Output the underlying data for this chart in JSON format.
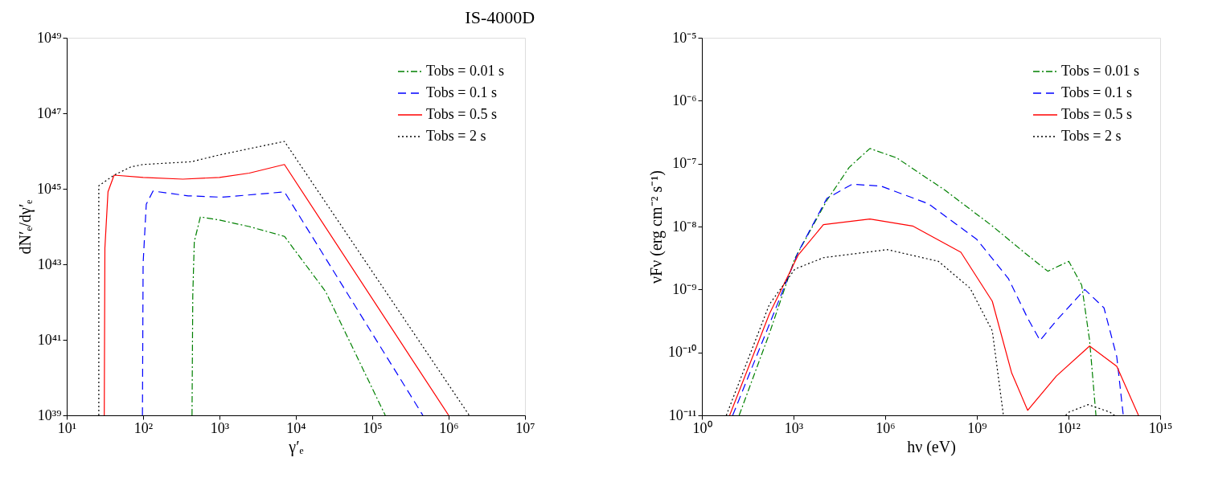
{
  "chart_data": [
    {
      "type": "line",
      "title": "IS-4000D",
      "xlabel": "γ′ₑ",
      "ylabel": "dN′ₑ/dγ′ₑ",
      "log": "xy",
      "grid": false,
      "legend": "top right",
      "marker": "none",
      "xlim": [
        10,
        10000000.0
      ],
      "ylim": [
        1e+39,
        1e+49
      ],
      "xticks": [
        {
          "value": 10,
          "label": "10¹"
        },
        {
          "value": 100,
          "label": "10²"
        },
        {
          "value": 1000,
          "label": "10³"
        },
        {
          "value": 10000.0,
          "label": "10⁴"
        },
        {
          "value": 100000.0,
          "label": "10⁵"
        },
        {
          "value": 1000000.0,
          "label": "10⁶"
        },
        {
          "value": 10000000.0,
          "label": "10⁷"
        }
      ],
      "yticks": [
        {
          "value": 1e+39,
          "label": "10³⁹"
        },
        {
          "value": 1e+41,
          "label": "10⁴¹"
        },
        {
          "value": 1e+43,
          "label": "10⁴³"
        },
        {
          "value": 1e+45,
          "label": "10⁴⁵"
        },
        {
          "value": 1e+47,
          "label": "10⁴⁷"
        },
        {
          "value": 1e+49,
          "label": "10⁴⁹"
        }
      ],
      "series": [
        {
          "name": "Tobs = 0.01 s",
          "color": "#008000",
          "line_style": "dashdot",
          "x": [
            437,
            447,
            468,
            562,
            977,
            2450,
            7080,
            24500,
            148000
          ],
          "values": [
            1e+39,
            1.5e+42,
            4e+43,
            1.8e+44,
            1.5e+44,
            1e+44,
            5.5e+43,
            1.9e+42,
            1e+39
          ]
        },
        {
          "name": "Tobs = 0.1 s",
          "color": "#0000ff",
          "line_style": "dashed",
          "x": [
            98,
            100,
            110,
            135,
            389,
            1070,
            3240,
            7080,
            460000
          ],
          "values": [
            1e+39,
            1.05e+43,
            3.9e+44,
            8.7e+44,
            6.5e+44,
            6e+44,
            7.2e+44,
            8.3e+44,
            1e+39
          ]
        },
        {
          "name": "Tobs = 0.5 s",
          "color": "#ff0000",
          "line_style": "solid",
          "x": [
            31,
            31.6,
            34.7,
            41.7,
            100,
            331,
            1000,
            2450,
            7080,
            1000000
          ],
          "values": [
            1e+39,
            2.7e+43,
            8.3e+44,
            2.3e+45,
            2e+45,
            1.8e+45,
            2e+45,
            2.6e+45,
            4.4e+45,
            1e+39
          ]
        },
        {
          "name": "Tobs = 2 s",
          "color": "#000000",
          "line_style": "dotted",
          "x": [
            26.3,
            26.3,
            41.7,
            69.2,
            100,
            427,
            1000,
            7080,
            1860000
          ],
          "values": [
            1e+39,
            1.2e+45,
            2.3e+45,
            3.8e+45,
            4.4e+45,
            5.2e+45,
            7.9e+45,
            1.8e+46,
            1e+39
          ]
        }
      ]
    },
    {
      "type": "line",
      "xlabel": "hν (eV)",
      "ylabel": "νFν (erg cm⁻² s⁻¹)",
      "log": "xy",
      "grid": false,
      "legend": "top right",
      "marker": "none",
      "xlim": [
        1,
        1000000000000000.0
      ],
      "ylim": [
        1e-11,
        1e-05
      ],
      "xticks": [
        {
          "value": 1,
          "label": "10⁰"
        },
        {
          "value": 1000,
          "label": "10³"
        },
        {
          "value": 1000000.0,
          "label": "10⁶"
        },
        {
          "value": 1000000000.0,
          "label": "10⁹"
        },
        {
          "value": 1000000000000.0,
          "label": "10¹²"
        },
        {
          "value": 1000000000000000.0,
          "label": "10¹⁵"
        }
      ],
      "yticks": [
        {
          "value": 1e-11,
          "label": "10⁻¹¹"
        },
        {
          "value": 1e-10,
          "label": "10⁻¹⁰"
        },
        {
          "value": 1e-09,
          "label": "10⁻⁹"
        },
        {
          "value": 1e-08,
          "label": "10⁻⁸"
        },
        {
          "value": 1e-07,
          "label": "10⁻⁷"
        },
        {
          "value": 1e-06,
          "label": "10⁻⁶"
        },
        {
          "value": 1e-05,
          "label": "10⁻⁵"
        }
      ],
      "series": [
        {
          "name": "Tobs = 0.01 s",
          "color": "#008000",
          "line_style": "dashdot",
          "x": [
            16.6,
            162,
            1100,
            12300,
            66000,
            316000,
            2400000,
            89000000.0,
            3200000000.0,
            35000000000.0,
            210000000000.0,
            1020000000000.0,
            2700000000000.0,
            4900000000000.0,
            7900000000000.0
          ],
          "values": [
            1e-11,
            2e-10,
            3.1e-09,
            2.6e-08,
            8.7e-08,
            1.74e-07,
            1.23e-07,
            3.8e-08,
            1.02e-08,
            3.9e-09,
            1.95e-09,
            2.8e-09,
            1.17e-09,
            1.55e-10,
            1e-11
          ]
        },
        {
          "name": "Tobs = 0.1 s",
          "color": "#0000ff",
          "line_style": "dashed",
          "x": [
            10.2,
            162,
            1410,
            12300,
            83000,
            720000,
            26000000.0,
            980000000.0,
            10700000000.0,
            46000000000.0,
            117000000000.0,
            400000000000.0,
            3400000000000.0,
            14500000000000.0,
            38000000000000.0,
            62000000000000.0
          ],
          "values": [
            1e-11,
            2.8e-10,
            3.9e-09,
            2.8e-08,
            4.7e-08,
            4.4e-08,
            2.3e-08,
            6.3e-09,
            1.5e-09,
            3.5e-10,
            1.55e-10,
            3.2e-10,
            1e-09,
            5.1e-10,
            8.5e-11,
            1e-11
          ]
        },
        {
          "name": "Tobs = 0.5 s",
          "color": "#ff0000",
          "line_style": "solid",
          "x": [
            8.1,
            162,
            1410,
            9500,
            316000,
            7900000,
            300000000.0,
            3200000000.0,
            13800000000.0,
            46000000000.0,
            400000000000.0,
            4900000000000.0,
            38000000000000.0,
            195000000000000.0
          ],
          "values": [
            1e-11,
            4.1e-10,
            3.5e-09,
            1.07e-08,
            1.32e-08,
            1.02e-08,
            3.9e-09,
            6.5e-10,
            4.7e-11,
            1.2e-11,
            4.2e-11,
            1.26e-10,
            6e-11,
            1e-11
          ]
        },
        {
          "name": "Tobs = 2 s",
          "color": "#000000",
          "line_style": "dotted",
          "x": [
            6.3,
            162,
            1100,
            9500,
            1170000,
            55000000.0,
            600000000.0,
            3200000000.0,
            7400000000.0,
            100000000000.0,
            810000000000.0,
            1020000000000.0,
            4400000000000.0,
            23000000000000.0,
            32000000000000.0
          ],
          "values": [
            1e-11,
            5.8e-10,
            2.1e-09,
            3.2e-09,
            4.3e-09,
            2.8e-09,
            1.05e-09,
            2.2e-10,
            1e-11,
            null,
            1e-11,
            1.12e-11,
            1.48e-11,
            1.12e-11,
            1e-11
          ]
        }
      ]
    }
  ]
}
